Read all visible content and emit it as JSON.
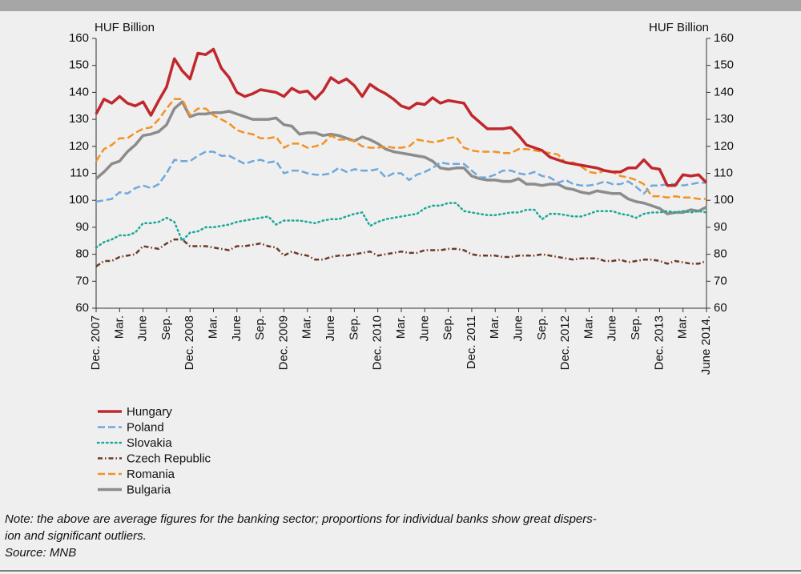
{
  "chart_data": {
    "type": "line",
    "y_label": "HUF Billion",
    "y2_label": "HUF Billion",
    "categories": [
      "Dec. 2007",
      null,
      null,
      "Mar.",
      null,
      null,
      "June",
      null,
      null,
      "Sep.",
      null,
      null,
      "Dec. 2008",
      null,
      null,
      "Mar.",
      null,
      null,
      "June",
      null,
      null,
      "Sep.",
      null,
      null,
      "Dec. 2009",
      null,
      null,
      "Mar.",
      null,
      null,
      "June",
      null,
      null,
      "Sep.",
      null,
      null,
      "Dec. 2010",
      null,
      null,
      "Mar.",
      null,
      null,
      "June",
      null,
      null,
      "Sep.",
      null,
      null,
      "Dec. 2011",
      null,
      null,
      "Mar.",
      null,
      null,
      "June",
      null,
      null,
      "Sep.",
      null,
      null,
      "Dec. 2012",
      null,
      null,
      "Mar.",
      null,
      null,
      "June",
      null,
      null,
      "Sep.",
      null,
      null,
      "Dec. 2013",
      null,
      null,
      "Mar.",
      null,
      null,
      "June 2014."
    ],
    "series": [
      {
        "name": "Hungary",
        "color": "#c0282d",
        "style": "solid",
        "values": [
          132,
          137.5,
          136,
          138.5,
          136,
          135,
          136.5,
          131.5,
          137,
          142,
          152.5,
          148,
          145,
          154.5,
          154,
          156,
          149,
          145.5,
          140,
          138.5,
          139.5,
          141,
          140.5,
          140,
          138.5,
          141.5,
          140,
          140.5,
          137.5,
          140.5,
          145.5,
          143.5,
          145,
          142.5,
          138.5,
          143,
          141,
          139.5,
          137.5,
          135,
          134,
          136,
          135.5,
          138,
          136,
          137,
          136.5,
          136,
          131.5,
          129,
          126.5,
          126.5,
          126.5,
          127,
          124,
          120.5,
          119.5,
          118.5,
          116,
          115,
          114,
          113.5,
          113,
          112.5,
          112,
          111,
          110.5,
          110.5,
          112,
          112,
          115,
          112,
          111.5,
          105.5,
          105.5,
          109.5,
          109,
          109.5,
          106.5
        ]
      },
      {
        "name": "Poland",
        "color": "#6fa8dc",
        "style": "dashed",
        "values": [
          99.5,
          100,
          100.5,
          103,
          102.5,
          104.5,
          105.5,
          104.5,
          106,
          110,
          115,
          114.5,
          114.5,
          116.5,
          118,
          118,
          116.5,
          116.5,
          115,
          113.5,
          114.5,
          115,
          114,
          114.5,
          110,
          111,
          111,
          110,
          109.5,
          109.5,
          110,
          112,
          110.5,
          111.5,
          111,
          111,
          111.5,
          108.5,
          110,
          110,
          107.5,
          109.5,
          110.5,
          112,
          114,
          113.5,
          113.5,
          113.5,
          111,
          108.5,
          108.5,
          109.5,
          111,
          111,
          110,
          109.5,
          110.5,
          109,
          108.5,
          106.5,
          107.5,
          106,
          105.5,
          105.5,
          106,
          107,
          106,
          106,
          107,
          105,
          102.5,
          105.5,
          105.5,
          106,
          106,
          105.5,
          106,
          106.5,
          106.5
        ]
      },
      {
        "name": "Slovakia",
        "color": "#1aa89a",
        "style": "dotted",
        "values": [
          82.5,
          84.5,
          85.5,
          87,
          87,
          88,
          91.5,
          91.5,
          92,
          93.5,
          92,
          85,
          88,
          88.5,
          90,
          90,
          90.5,
          91,
          92,
          92.5,
          93,
          93.5,
          94,
          91,
          92.5,
          92.5,
          92.5,
          92,
          91.5,
          92.5,
          93,
          93,
          94,
          95,
          95.5,
          90.5,
          92,
          93,
          93.5,
          94,
          94.5,
          95,
          97,
          98,
          98,
          99,
          99,
          96,
          95.5,
          95,
          94.5,
          94.5,
          95,
          95.5,
          95.5,
          96.5,
          96.5,
          93,
          95,
          95,
          94.5,
          94,
          94,
          95,
          96,
          96,
          96,
          95,
          94.5,
          93.5,
          95,
          95.5,
          95.5,
          96,
          95.5,
          96,
          95.5,
          96,
          95.5
        ]
      },
      {
        "name": "Czech Republic",
        "color": "#6b3a23",
        "style": "dashdot",
        "values": [
          75.5,
          77.5,
          77.5,
          79,
          79.5,
          80,
          83,
          82.5,
          82,
          84,
          85.5,
          85.5,
          83,
          83,
          83,
          82.5,
          82,
          81.5,
          83,
          83,
          83.5,
          84,
          83,
          82.5,
          79.5,
          81,
          80,
          79.5,
          78,
          78,
          79,
          79.5,
          79.5,
          80,
          80.5,
          81,
          79.5,
          80,
          80.5,
          81,
          80.5,
          80.5,
          81.5,
          81.5,
          81.5,
          82,
          82,
          81.5,
          80,
          79.5,
          79.5,
          79.5,
          79,
          79,
          79.5,
          79.5,
          79.5,
          80,
          79.5,
          79,
          78.5,
          78,
          78.5,
          78.5,
          78.5,
          77.5,
          77.5,
          78,
          77,
          77.5,
          78,
          78,
          77.5,
          76.5,
          77.5,
          77,
          76.5,
          76.5,
          77.5
        ]
      },
      {
        "name": "Romania",
        "color": "#f39220",
        "style": "dashed",
        "values": [
          114.5,
          119,
          120.5,
          123,
          123,
          125,
          126.5,
          127,
          130,
          134,
          137.5,
          137.5,
          131.5,
          134,
          134,
          131.5,
          130,
          128.5,
          126,
          125,
          124.5,
          123,
          123,
          123.5,
          119.5,
          121,
          121,
          119.5,
          120,
          121,
          124,
          122.5,
          122.5,
          122,
          120,
          119.5,
          119.5,
          120,
          119.5,
          119.5,
          120,
          122.5,
          122,
          121.5,
          122,
          123,
          123.5,
          119.5,
          118.5,
          118,
          118,
          118,
          117.5,
          117.5,
          119,
          119,
          118.5,
          118,
          117.5,
          117,
          114,
          114,
          112.5,
          110.5,
          110,
          111,
          110.5,
          109,
          108.5,
          107.5,
          106,
          101.5,
          101.5,
          101,
          101.5,
          101,
          101,
          100.5,
          100.5
        ]
      },
      {
        "name": "Bulgaria",
        "color": "#8c8c8c",
        "style": "solid",
        "values": [
          108,
          110.5,
          113.5,
          114.5,
          118,
          120.5,
          124,
          124.5,
          125.5,
          128,
          134,
          136.5,
          131,
          132,
          132,
          132.5,
          132.5,
          133,
          132,
          131,
          130,
          130,
          130,
          130.5,
          128,
          127.5,
          124.5,
          125,
          125,
          124,
          124.5,
          124,
          123,
          122,
          123.5,
          122.5,
          121,
          119,
          118,
          117.5,
          117,
          116.5,
          116,
          114.5,
          112,
          111.5,
          112,
          112,
          109,
          108,
          107.5,
          107.5,
          107,
          107,
          108,
          106,
          106,
          105.5,
          106,
          106,
          104.5,
          104,
          103,
          102.5,
          103.5,
          103,
          102.5,
          102.5,
          100.5,
          99.5,
          99,
          98,
          97,
          95,
          95.5,
          95.5,
          96.5,
          96,
          97.5
        ]
      }
    ],
    "ylim": [
      60,
      160
    ],
    "yticks": [
      60,
      70,
      80,
      90,
      100,
      110,
      120,
      130,
      140,
      150,
      160
    ],
    "y2lim": [
      60,
      160
    ],
    "y2ticks": [
      60,
      70,
      80,
      90,
      100,
      110,
      120,
      130,
      140,
      150,
      160
    ],
    "legend": "bottom-left"
  },
  "note": [
    "Note: the above are average figures for the banking sector; proportions for individual banks show great dispers-",
    "ion and significant outliers."
  ],
  "source": "Source: MNB"
}
